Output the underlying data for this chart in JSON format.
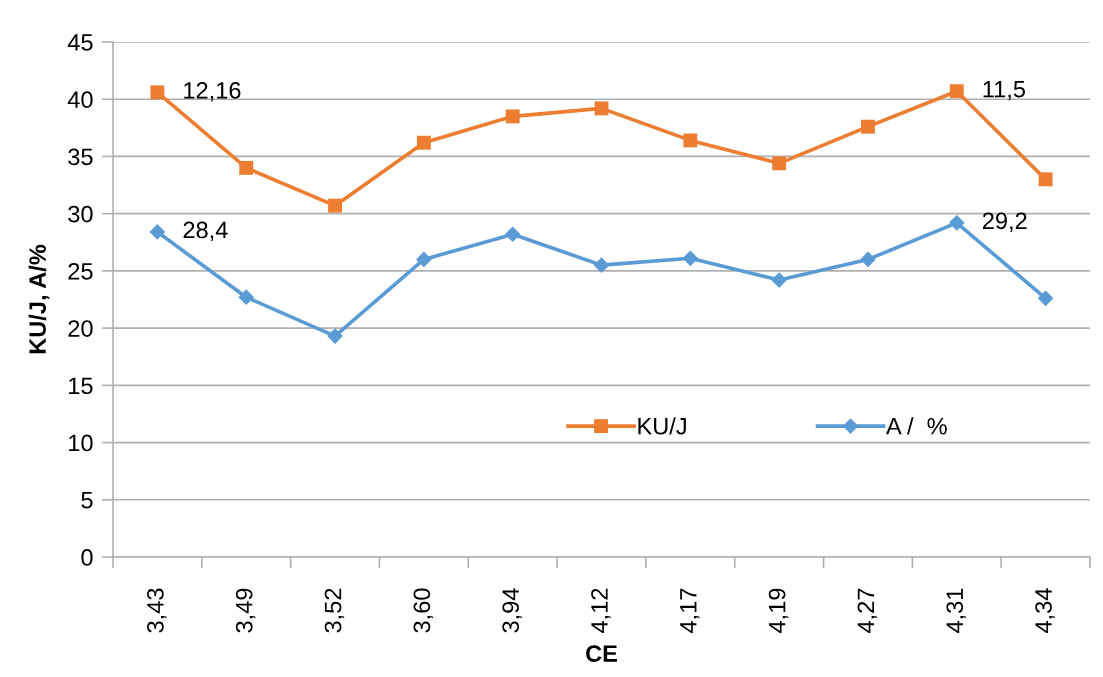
{
  "chart_data": {
    "type": "line",
    "xlabel": "CE",
    "ylabel": "KU/J, A/%",
    "categories": [
      "3,43",
      "3,49",
      "3,52",
      "3,60",
      "3,94",
      "4,12",
      "4,17",
      "4,19",
      "4,27",
      "4,31",
      "4,34"
    ],
    "series": [
      {
        "name": "KU/J",
        "color": "#ed7d31",
        "marker": "square",
        "values": [
          40.6,
          34.0,
          30.7,
          36.2,
          38.5,
          39.2,
          36.4,
          34.4,
          37.6,
          40.7,
          33.0
        ]
      },
      {
        "name": "A /  %",
        "color": "#5b9bd5",
        "marker": "diamond",
        "values": [
          28.4,
          22.7,
          19.3,
          26.0,
          28.2,
          25.5,
          26.1,
          24.2,
          26.0,
          29.2,
          22.6
        ]
      }
    ],
    "ylim": [
      0,
      45
    ],
    "yticks": [
      0,
      5,
      10,
      15,
      20,
      25,
      30,
      35,
      40,
      45
    ],
    "grid": "y",
    "legend": "bottom",
    "line_style": "solid",
    "annotations": [
      {
        "text": "12,16",
        "x": "3,43",
        "y": 40.6
      },
      {
        "text": "11,5",
        "x": "4,31",
        "y": 40.7
      },
      {
        "text": "28,4",
        "x": "3,43",
        "y": 28.4
      },
      {
        "text": "29,2",
        "x": "4,31",
        "y": 29.2
      }
    ]
  }
}
